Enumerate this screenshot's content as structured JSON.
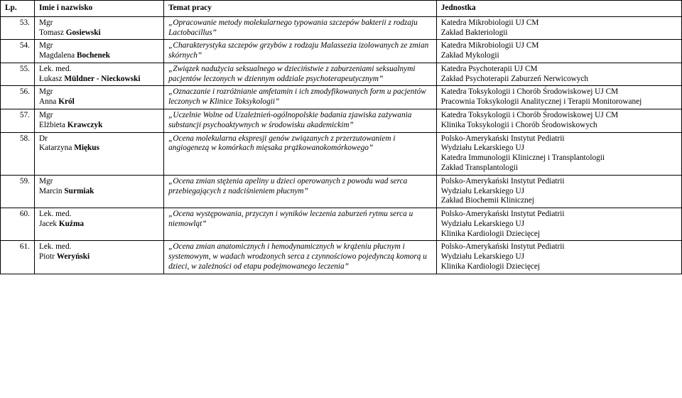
{
  "headers": {
    "lp": "Lp.",
    "name": "Imie i nazwisko",
    "topic": "Temat pracy",
    "unit": "Jednostka"
  },
  "rows": [
    {
      "lp": "53.",
      "name_prefix": "Mgr",
      "name_first": "Tomasz ",
      "name_last": "Gosiewski",
      "topic": "„Opracowanie metody molekularnego typowania szczepów bakterii z rodzaju Lactobacillus”",
      "unit": "Katedra Mikrobiologii UJ CM\nZakład Bakteriologii"
    },
    {
      "lp": "54.",
      "name_prefix": "Mgr",
      "name_first": "Magdalena ",
      "name_last": "Bochenek",
      "topic": "„Charakterystyka szczepów grzybów z rodzaju Malassezia izolowanych ze zmian skórnych”",
      "unit": "Katedra Mikrobiologii UJ CM\nZakład Mykologii"
    },
    {
      "lp": "55.",
      "name_prefix": "Lek. med.",
      "name_first": "Łukasz ",
      "name_last": "Müldner - Nieckowski",
      "topic": "„Związek nadużycia seksualnego w dzieciństwie z zaburzeniami seksualnymi pacjentów leczonych w dziennym oddziale psychoterapeutycznym”",
      "unit": "Katedra Psychoterapii UJ CM\nZakład Psychoterapii Zaburzeń Nerwicowych"
    },
    {
      "lp": "56.",
      "name_prefix": "Mgr",
      "name_first": "Anna ",
      "name_last": "Król",
      "topic": "„Oznaczanie i rozróżnianie amfetamin i ich zmodyfikowanych form u pacjentów leczonych w Klinice Toksykologii”",
      "unit": "Katedra Toksykologii i Chorób Środowiskowej UJ CM\nPracownia Toksykologii Analitycznej i Terapii Monitorowanej"
    },
    {
      "lp": "57.",
      "name_prefix": "Mgr",
      "name_first": "Elżbieta ",
      "name_last": "Krawczyk",
      "topic": "„Uczelnie Wolne od Uzależnień-ogólnopolskie badania zjawiska zażywania substancji psychoaktywnych w środowisku akademickim”",
      "unit": "Katedra Toksykologii i Chorób Środowiskowej UJ CM\nKlinika Toksykologii i Chorób Środowiskowych"
    },
    {
      "lp": "58.",
      "name_prefix": "Dr",
      "name_first": "Katarzyna ",
      "name_last": "Miękus",
      "topic": "„Ocena molekularna ekspresji genów związanych z przerzutowaniem i angiogenezą w komórkach mięsaka prążkowanokomórkowego”",
      "unit": "Polsko-Amerykański Instytut Pediatrii\nWydziału Lekarskiego UJ\nKatedra Immunologii Klinicznej i Transplantologii\nZakład Transplantologii"
    },
    {
      "lp": "59.",
      "name_prefix": "Mgr",
      "name_first": "Marcin ",
      "name_last": "Surmiak",
      "topic": "„Ocena zmian stężenia apeliny u dzieci operowanych z powodu wad serca przebiegających z nadciśnieniem płucnym”",
      "unit": "Polsko-Amerykański Instytut Pediatrii\nWydziału Lekarskiego UJ\nZakład Biochemii Klinicznej"
    },
    {
      "lp": "60.",
      "name_prefix": "Lek. med.",
      "name_first": "Jacek ",
      "name_last": "Kuźma",
      "topic": "„Ocena występowania, przyczyn i wyników leczenia zaburzeń rytmu serca u niemowląt”",
      "unit": "Polsko-Amerykański Instytut Pediatrii\nWydziału Lekarskiego UJ\nKlinika Kardiologii Dziecięcej"
    },
    {
      "lp": "61.",
      "name_prefix": "Lek. med.",
      "name_first": "Piotr ",
      "name_last": "Weryński",
      "topic": "„Ocena zmian anatomicznych i hemodynamicznych w krążeniu płucnym i systemowym, w wadach wrodzonych serca z czynnościowo pojedynczą komorą u dzieci, w zależności od etapu podejmowanego leczenia”",
      "unit": "Polsko-Amerykański Instytut Pediatrii\nWydziału Lekarskiego UJ\nKlinika Kardiologii Dziecięcej"
    }
  ]
}
